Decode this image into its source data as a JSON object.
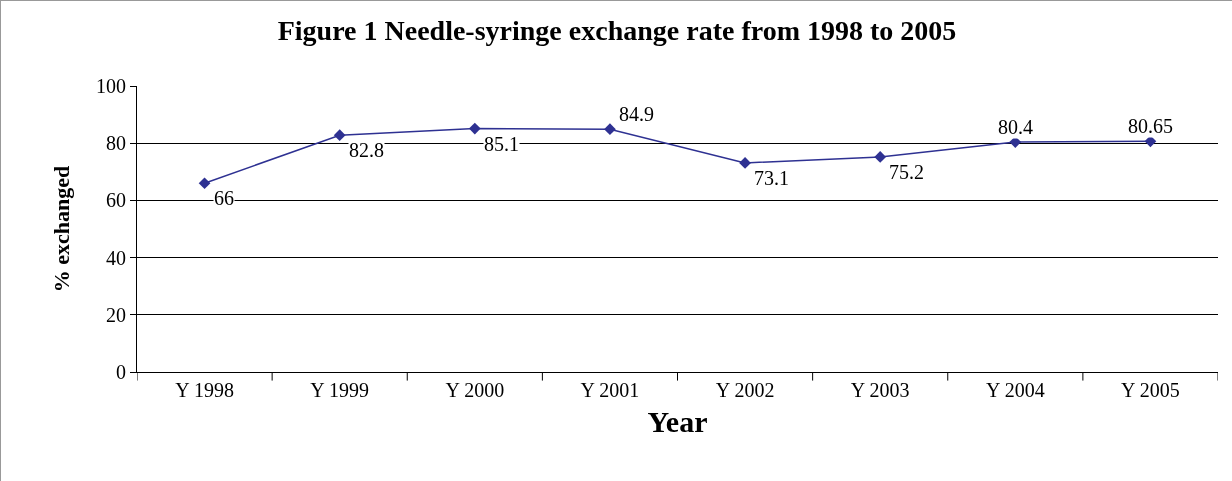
{
  "chart_data": {
    "type": "line",
    "title": "Figure 1 Needle-syringe exchange rate from 1998 to 2005",
    "xlabel": "Year",
    "ylabel": "% exchanged",
    "categories": [
      "Y 1998",
      "Y 1999",
      "Y 2000",
      "Y 2001",
      "Y 2002",
      "Y 2003",
      "Y 2004",
      "Y 2005"
    ],
    "series": [
      {
        "color": "#2e3192",
        "values": [
          66,
          82.8,
          85.1,
          84.9,
          73.1,
          75.2,
          80.4,
          80.65
        ]
      }
    ],
    "ylim": [
      0,
      100
    ],
    "yticks": [
      0,
      20,
      40,
      60,
      80,
      100
    ],
    "grid": "y",
    "marker": "diamond",
    "line_style": "solid",
    "data_labels": true
  }
}
